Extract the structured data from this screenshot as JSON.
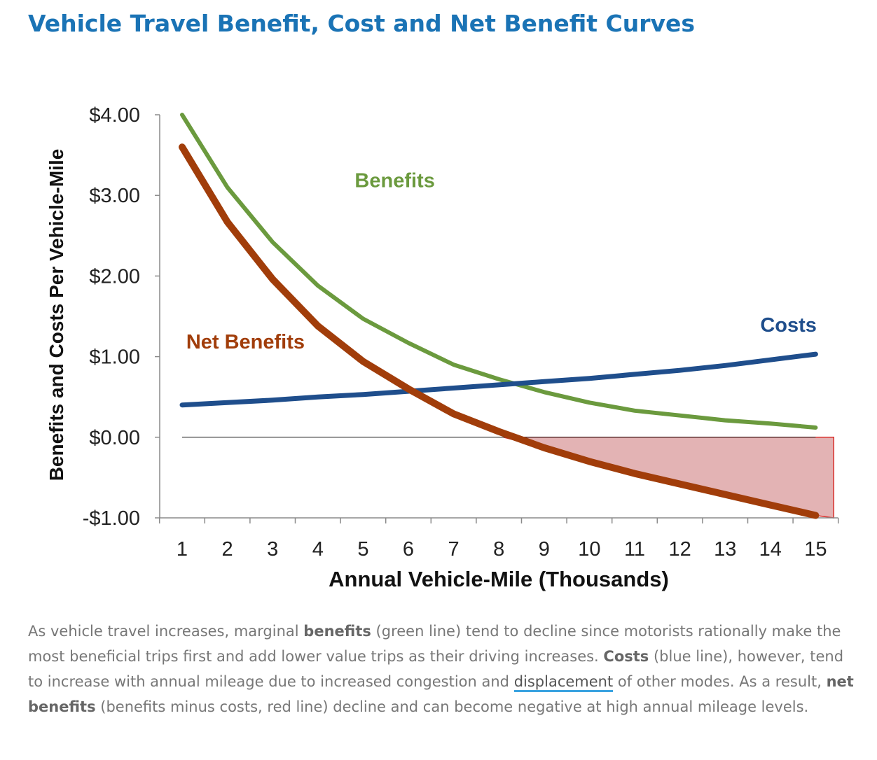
{
  "page": {
    "title": "Vehicle Travel Benefit, Cost and Net Benefit Curves"
  },
  "caption": {
    "t1": "As vehicle travel increases, marginal ",
    "b1": "benefits",
    "t2": " (green line) tend to decline since motorists rationally make the most beneficial trips first and add lower value trips as their driving increases. ",
    "b2": "Costs",
    "t3": " (blue line), however, tend to increase with annual mileage due to increased congestion and ",
    "link": "displacement",
    "t4": " of other modes. As a result, ",
    "b3": "net benefits",
    "t5": " (benefits minus costs, red line) decline and can become negative at high annual mileage levels."
  },
  "chart_data": {
    "type": "line",
    "title": "",
    "xlabel": "Annual Vehicle-Mile (Thousands)",
    "ylabel": "Benefits and Costs Per Vehicle-Mile",
    "x": [
      1,
      2,
      3,
      4,
      5,
      6,
      7,
      8,
      9,
      10,
      11,
      12,
      13,
      14,
      15
    ],
    "xlim": [
      0,
      16
    ],
    "ylim": [
      -1,
      4
    ],
    "yticks": [
      {
        "value": 4,
        "label": "$4.00"
      },
      {
        "value": 3,
        "label": "$3.00"
      },
      {
        "value": 2,
        "label": "$2.00"
      },
      {
        "value": 1,
        "label": "$1.00"
      },
      {
        "value": 0,
        "label": "$0.00"
      },
      {
        "value": -1,
        "label": "-$1.00"
      }
    ],
    "xticks": [
      "1",
      "2",
      "3",
      "4",
      "5",
      "6",
      "7",
      "8",
      "9",
      "10",
      "11",
      "12",
      "13",
      "14",
      "15"
    ],
    "grid": false,
    "series": [
      {
        "name": "Benefits",
        "color": "#6b9a3e",
        "values": [
          4.0,
          3.1,
          2.42,
          1.88,
          1.47,
          1.17,
          0.9,
          0.72,
          0.56,
          0.43,
          0.33,
          0.27,
          0.21,
          0.17,
          0.12
        ]
      },
      {
        "name": "Costs",
        "color": "#1f4e8c",
        "values": [
          0.4,
          0.43,
          0.46,
          0.5,
          0.53,
          0.57,
          0.61,
          0.65,
          0.69,
          0.73,
          0.78,
          0.83,
          0.89,
          0.96,
          1.03
        ]
      },
      {
        "name": "Net Benefits",
        "color": "#a13d0a",
        "values": [
          3.6,
          2.67,
          1.96,
          1.38,
          0.94,
          0.6,
          0.29,
          0.07,
          -0.13,
          -0.3,
          -0.45,
          -0.58,
          -0.71,
          -0.84,
          -0.97
        ]
      }
    ],
    "shaded_region": {
      "x_start": 8.1,
      "x_end": 15.4,
      "y_bottom": -1.0,
      "color": "#e3b3b4",
      "border": "#d9302c"
    },
    "zero_line": true,
    "labels": [
      {
        "text": "Benefits",
        "series": "Benefits",
        "x": 5.7,
        "y": 3.1
      },
      {
        "text": "Costs",
        "series": "Costs",
        "x": 14.4,
        "y": 1.31
      },
      {
        "text": "Net Benefits",
        "series": "Net Benefits",
        "x": 2.4,
        "y": 1.1
      }
    ]
  }
}
